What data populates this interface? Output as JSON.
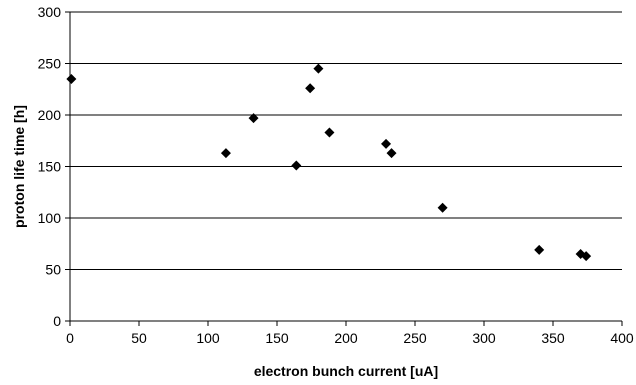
{
  "chart_data": {
    "type": "scatter",
    "xlabel": "electron bunch current [uA]",
    "ylabel": "proton life time [h]",
    "xlim": [
      0,
      400
    ],
    "ylim": [
      0,
      300
    ],
    "x_ticks": [
      0,
      50,
      100,
      150,
      200,
      250,
      300,
      350,
      400
    ],
    "y_ticks": [
      0,
      50,
      100,
      150,
      200,
      250,
      300
    ],
    "grid": "horizontal",
    "marker": "diamond",
    "marker_color": "#000000",
    "points": [
      {
        "x": 1,
        "y": 235
      },
      {
        "x": 113,
        "y": 163
      },
      {
        "x": 133,
        "y": 197
      },
      {
        "x": 164,
        "y": 151
      },
      {
        "x": 174,
        "y": 226
      },
      {
        "x": 180,
        "y": 245
      },
      {
        "x": 188,
        "y": 183
      },
      {
        "x": 229,
        "y": 172
      },
      {
        "x": 233,
        "y": 163
      },
      {
        "x": 270,
        "y": 110
      },
      {
        "x": 340,
        "y": 69
      },
      {
        "x": 370,
        "y": 65
      },
      {
        "x": 374,
        "y": 63
      }
    ]
  }
}
